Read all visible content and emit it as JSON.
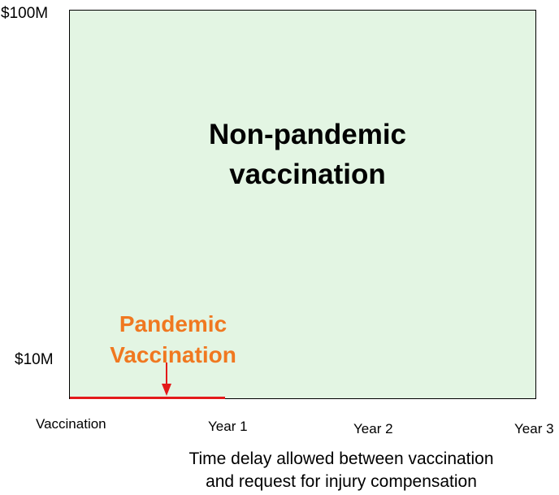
{
  "y_axis": {
    "top_label": "$100M",
    "bottom_label": "$10M"
  },
  "x_axis": {
    "ticks": [
      "Vaccination",
      "Year 1",
      "Year 2",
      "Year 3"
    ],
    "title_line1": "Time delay allowed between vaccination",
    "title_line2": "and request for injury compensation"
  },
  "regions": {
    "non_pandemic": {
      "line1": "Non-pandemic",
      "line2": "vaccination",
      "fill_color": "#e3f5e3"
    },
    "pandemic": {
      "line1": "Pandemic",
      "line2": "Vaccination",
      "text_color": "#f07820",
      "line_color": "#e31a1a"
    }
  }
}
